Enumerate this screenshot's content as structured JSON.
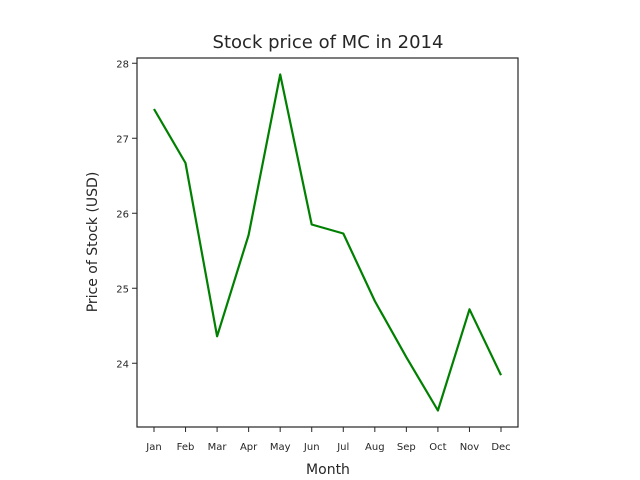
{
  "chart_data": {
    "type": "line",
    "title": "Stock price of MC in 2014",
    "xlabel": "Month",
    "ylabel": "Price of Stock (USD)",
    "categories": [
      "Jan",
      "Feb",
      "Mar",
      "Apr",
      "May",
      "Jun",
      "Jul",
      "Aug",
      "Sep",
      "Oct",
      "Nov",
      "Dec"
    ],
    "series": [
      {
        "color": "#008000",
        "values": [
          27.39,
          26.67,
          24.36,
          25.71,
          27.85,
          25.85,
          25.73,
          24.83,
          24.08,
          23.37,
          24.72,
          23.84
        ]
      }
    ],
    "ylim": [
      23.15,
      28.07
    ],
    "yticks": [
      24,
      25,
      26,
      27,
      28
    ],
    "grid": false,
    "legend": "none"
  }
}
